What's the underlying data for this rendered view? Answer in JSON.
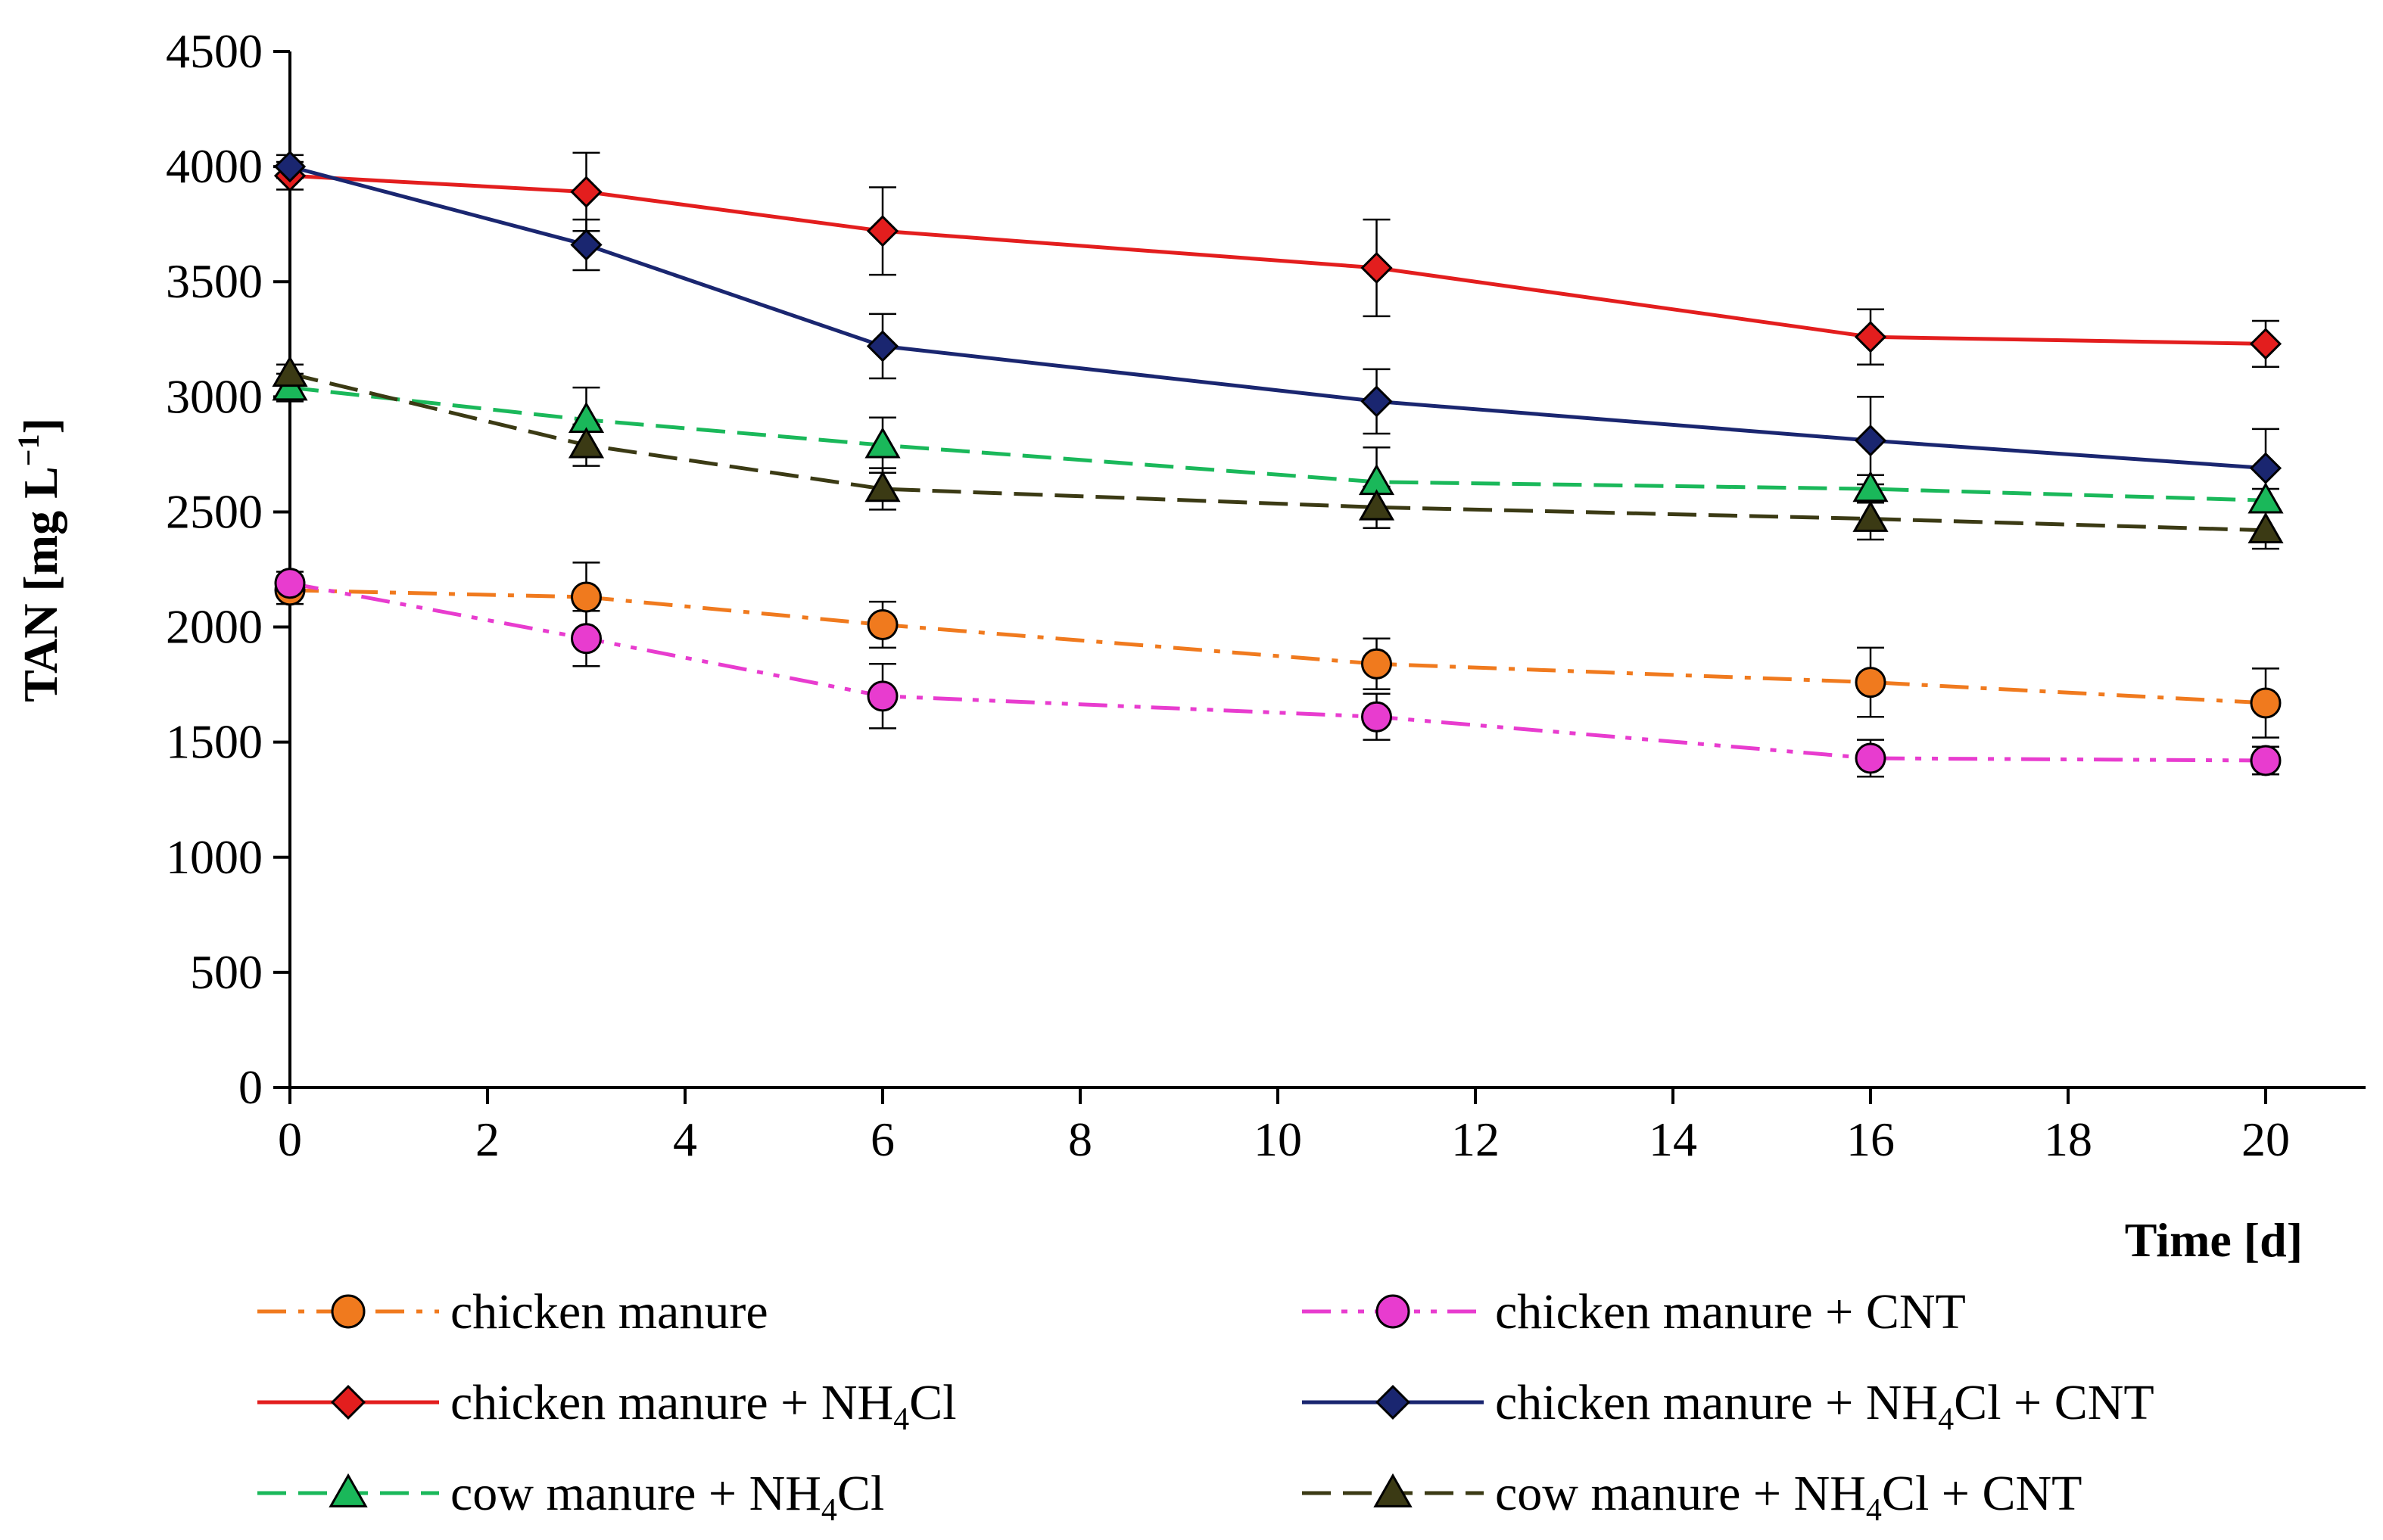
{
  "chart_data": {
    "type": "line",
    "xlabel": "Time [d]",
    "ylabel": {
      "main": "TAN [mg L",
      "sup": "−1",
      "close": "]"
    },
    "xlim": [
      0,
      21
    ],
    "ylim": [
      0,
      4500
    ],
    "xticks": [
      0,
      2,
      4,
      6,
      8,
      10,
      12,
      14,
      16,
      18,
      20
    ],
    "yticks": [
      0,
      500,
      1000,
      1500,
      2000,
      2500,
      3000,
      3500,
      4000,
      4500
    ],
    "grid": false,
    "legend_position": "bottom",
    "series": [
      {
        "name": "chicken manure",
        "legend": {
          "parts": [
            [
              "chicken manure",
              "t"
            ]
          ]
        },
        "color": "#f07a1e",
        "marker": "circle",
        "marker_fill": "#f07a1e",
        "dash": "dashdot",
        "x": [
          0,
          3,
          6,
          11,
          16,
          20
        ],
        "y": [
          2160,
          2130,
          2010,
          1840,
          1760,
          1670
        ],
        "err": [
          60,
          150,
          100,
          110,
          150,
          150
        ]
      },
      {
        "name": "chicken manure + CNT",
        "legend": {
          "parts": [
            [
              "chicken manure + CNT",
              "t"
            ]
          ]
        },
        "color": "#e83ccf",
        "marker": "circle",
        "marker_fill": "#e83ccf",
        "dash": "dashdotdot",
        "x": [
          0,
          3,
          6,
          11,
          16,
          20
        ],
        "y": [
          2190,
          1950,
          1700,
          1610,
          1430,
          1420
        ],
        "err": [
          50,
          120,
          140,
          100,
          80,
          60
        ]
      },
      {
        "name": "chicken manure  +  NH4Cl",
        "legend": {
          "parts": [
            [
              "chicken manure  +  NH",
              "t"
            ],
            [
              "4",
              "sub"
            ],
            [
              "Cl",
              "t"
            ]
          ]
        },
        "color": "#e31e1e",
        "marker": "diamond",
        "marker_fill": "#e31e1e",
        "dash": "solid",
        "x": [
          0,
          3,
          6,
          11,
          16,
          20
        ],
        "y": [
          3960,
          3890,
          3720,
          3560,
          3260,
          3230
        ],
        "err": [
          60,
          170,
          190,
          210,
          120,
          100
        ]
      },
      {
        "name": "chicken manure  +  NH4Cl  +  CNT",
        "legend": {
          "parts": [
            [
              "chicken manure  +  NH",
              "t"
            ],
            [
              "4",
              "sub"
            ],
            [
              "Cl  +  CNT",
              "t"
            ]
          ]
        },
        "color": "#1a2670",
        "marker": "diamond",
        "marker_fill": "#1a2670",
        "dash": "solid",
        "x": [
          0,
          3,
          6,
          11,
          16,
          20
        ],
        "y": [
          4000,
          3660,
          3220,
          2980,
          2810,
          2690
        ],
        "err": [
          50,
          110,
          140,
          140,
          190,
          170
        ]
      },
      {
        "name": "cow manure  +  NH4Cl",
        "legend": {
          "parts": [
            [
              "cow manure  +  NH",
              "t"
            ],
            [
              "4",
              "sub"
            ],
            [
              "Cl",
              "t"
            ]
          ]
        },
        "color": "#1ab85a",
        "marker": "triangle",
        "marker_fill": "#1ab85a",
        "dash": "dash",
        "x": [
          0,
          3,
          6,
          11,
          16,
          20
        ],
        "y": [
          3040,
          2900,
          2790,
          2630,
          2600,
          2550
        ],
        "err": [
          60,
          140,
          120,
          150,
          60,
          50
        ]
      },
      {
        "name": "cow manure +  NH4Cl  +  CNT",
        "legend": {
          "parts": [
            [
              "cow manure +  NH",
              "t"
            ],
            [
              "4",
              "sub"
            ],
            [
              "Cl  +  CNT",
              "t"
            ]
          ]
        },
        "color": "#3b3a14",
        "marker": "triangle",
        "marker_fill": "#3b3a14",
        "dash": "dash",
        "x": [
          0,
          3,
          6,
          11,
          16,
          20
        ],
        "y": [
          3100,
          2790,
          2600,
          2520,
          2470,
          2420
        ],
        "err": [
          40,
          90,
          90,
          90,
          90,
          80
        ]
      }
    ]
  }
}
